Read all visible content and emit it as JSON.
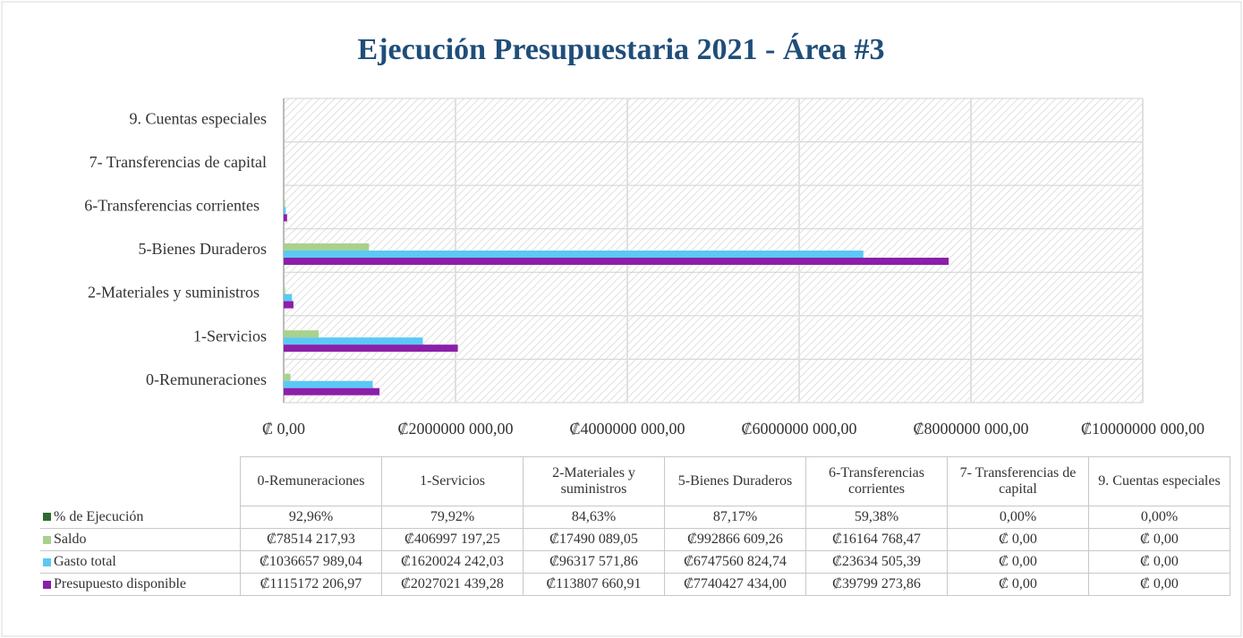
{
  "chart_data": {
    "type": "hbar",
    "title": "Ejecución Presupuestaria 2021 - Área #3",
    "categories": [
      "0-Remuneraciones",
      "1-Servicios",
      "2-Materiales y suministros",
      "5-Bienes Duraderos",
      "6-Transferencias corrientes",
      "7- Transferencias de capital",
      "9. Cuentas especiales"
    ],
    "series": [
      {
        "name": "% de Ejecución",
        "color": "#2e6b2e",
        "values": [
          92.96,
          79.92,
          84.63,
          87.17,
          59.38,
          0,
          0
        ],
        "value_labels": [
          "92,96%",
          "79,92%",
          "84,63%",
          "87,17%",
          "59,38%",
          "0,00%",
          "0,00%"
        ]
      },
      {
        "name": "Saldo",
        "color": "#a9d18e",
        "values": [
          78514217.93,
          406997197.25,
          17490089.05,
          992866609.26,
          16164768.47,
          0,
          0
        ],
        "value_labels": [
          "₡78514 217,93",
          "₡406997 197,25",
          "₡17490 089,05",
          "₡992866 609,26",
          "₡16164 768,47",
          "₡ 0,00",
          "₡ 0,00"
        ]
      },
      {
        "name": "Gasto total",
        "color": "#5bc8f5",
        "values": [
          1036657989.04,
          1620024242.03,
          96317571.86,
          6747560824.74,
          23634505.39,
          0,
          0
        ],
        "value_labels": [
          "₡1036657 989,04",
          "₡1620024 242,03",
          "₡96317 571,86",
          "₡6747560 824,74",
          "₡23634 505,39",
          "₡ 0,00",
          "₡ 0,00"
        ]
      },
      {
        "name": "Presupuesto disponible",
        "color": "#8b1fa9",
        "values": [
          1115172206.97,
          2027021439.28,
          113807660.91,
          7740427434.0,
          39799273.86,
          0,
          0
        ],
        "value_labels": [
          "₡1115172 206,97",
          "₡2027021 439,28",
          "₡113807 660,91",
          "₡7740427 434,00",
          "₡39799 273,86",
          "₡ 0,00",
          "₡ 0,00"
        ]
      }
    ],
    "xlim": [
      0,
      10000000000
    ],
    "xticks": [
      {
        "value": 0,
        "label": "₡ 0,00"
      },
      {
        "value": 2000000000,
        "label": "₡2000000 000,00"
      },
      {
        "value": 4000000000,
        "label": "₡4000000 000,00"
      },
      {
        "value": 6000000000,
        "label": "₡6000000 000,00"
      },
      {
        "value": 8000000000,
        "label": "₡8000000 000,00"
      },
      {
        "value": 10000000000,
        "label": "₡10000000 000,00"
      }
    ],
    "grid": true
  }
}
